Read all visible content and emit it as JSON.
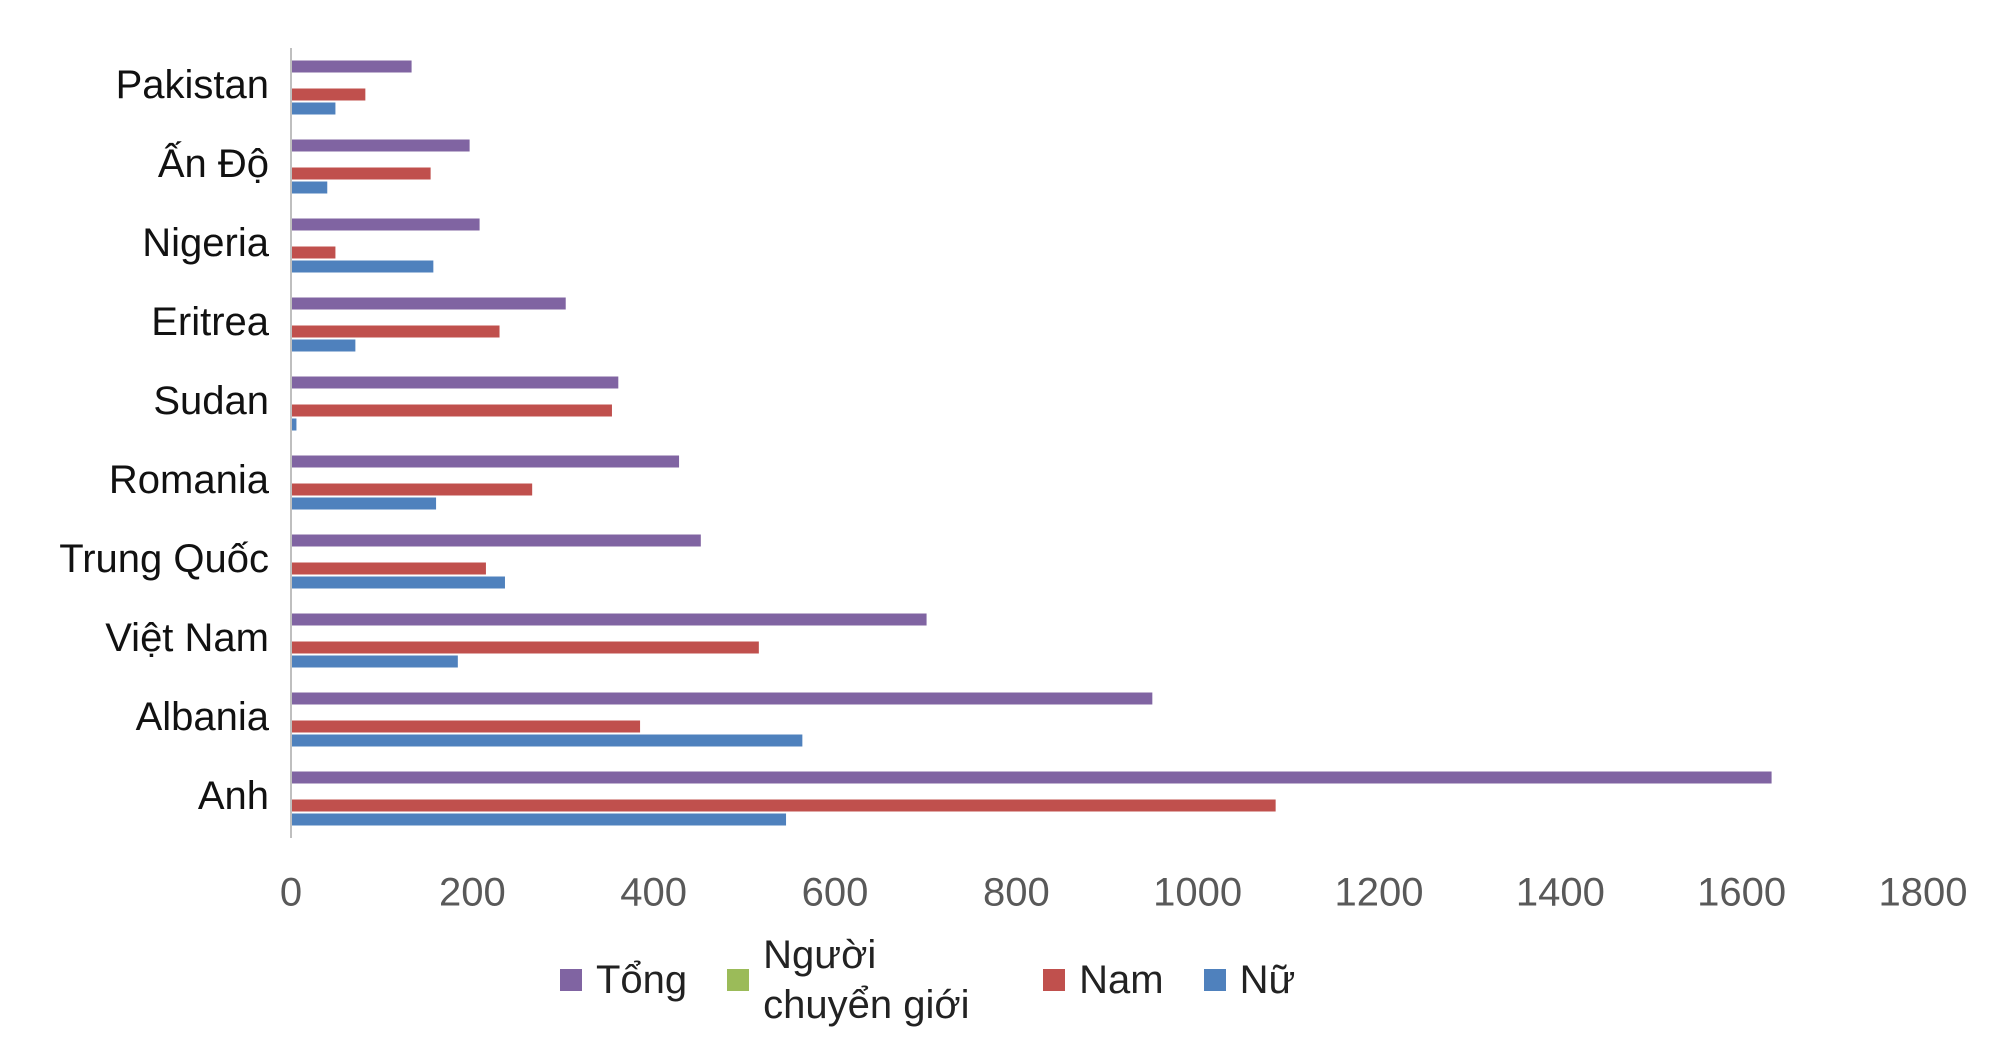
{
  "chart_data": {
    "type": "bar",
    "orientation": "horizontal",
    "categories": [
      "Pakistan",
      "Ấn Độ",
      "Nigeria",
      "Eritrea",
      "Sudan",
      "Romania",
      "Trung Quốc",
      "Việt Nam",
      "Albania",
      "Anh"
    ],
    "series": [
      {
        "name": "Tổng",
        "color": "#8064a2",
        "values": [
          133,
          197,
          208,
          303,
          361,
          428,
          452,
          701,
          950,
          1633
        ]
      },
      {
        "name": "Người chuyển giới",
        "color": "#9bbb59",
        "values": [
          0,
          0,
          0,
          0,
          0,
          0,
          0,
          0,
          0,
          0
        ]
      },
      {
        "name": "Nam",
        "color": "#c0504d",
        "values": [
          82,
          154,
          49,
          230,
          354,
          266,
          215,
          516,
          385,
          1086
        ]
      },
      {
        "name": "Nữ",
        "color": "#4f81bd",
        "values": [
          49,
          40,
          157,
          71,
          6,
          160,
          236,
          184,
          564,
          546
        ]
      }
    ],
    "xlim": [
      0,
      1800
    ],
    "xticks": [
      0,
      200,
      400,
      600,
      800,
      1000,
      1200,
      1400,
      1600,
      1800
    ],
    "grid": false,
    "legend": "bottom"
  }
}
